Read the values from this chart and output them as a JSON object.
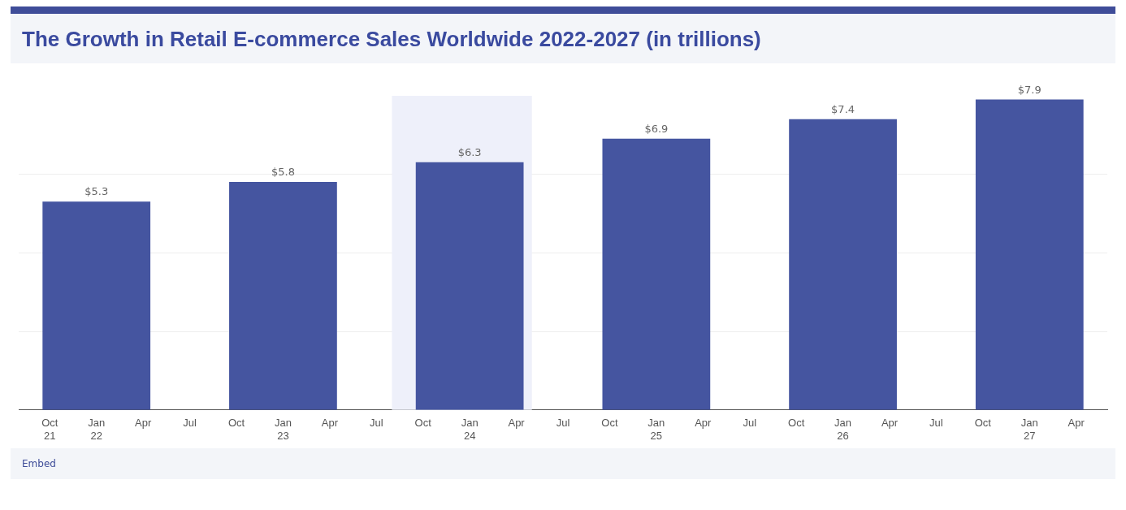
{
  "chart_data": {
    "type": "bar",
    "title": "The Growth in Retail E-commerce Sales Worldwide 2022-2027 (in trillions)",
    "x": [
      "2022-01",
      "2023-01",
      "2024-01",
      "2025-01",
      "2026-01",
      "2027-01"
    ],
    "values": [
      5.3,
      5.8,
      6.3,
      6.9,
      7.4,
      7.9
    ],
    "value_labels": [
      "$5.3",
      "$5.8",
      "$6.3",
      "$6.9",
      "$7.4",
      "$7.9"
    ],
    "color": "#4555a0",
    "xlim": [
      "2021-08",
      "2027-06"
    ],
    "xticks": [
      {
        "value": "2021-10",
        "label": "Oct 21"
      },
      {
        "value": "2022-01",
        "label": "Jan 22"
      },
      {
        "value": "2022-04",
        "label": "Apr"
      },
      {
        "value": "2022-07",
        "label": "Jul"
      },
      {
        "value": "2022-10",
        "label": "Oct"
      },
      {
        "value": "2023-01",
        "label": "Jan 23"
      },
      {
        "value": "2023-04",
        "label": "Apr"
      },
      {
        "value": "2023-07",
        "label": "Jul"
      },
      {
        "value": "2023-10",
        "label": "Oct"
      },
      {
        "value": "2024-01",
        "label": "Jan 24"
      },
      {
        "value": "2024-04",
        "label": "Apr"
      },
      {
        "value": "2024-07",
        "label": "Jul"
      },
      {
        "value": "2024-10",
        "label": "Oct"
      },
      {
        "value": "2025-01",
        "label": "Jan 25"
      },
      {
        "value": "2025-04",
        "label": "Apr"
      },
      {
        "value": "2025-07",
        "label": "Jul"
      },
      {
        "value": "2025-10",
        "label": "Oct"
      },
      {
        "value": "2026-01",
        "label": "Jan 26"
      },
      {
        "value": "2026-04",
        "label": "Apr"
      },
      {
        "value": "2026-07",
        "label": "Jul"
      },
      {
        "value": "2026-10",
        "label": "Oct"
      },
      {
        "value": "2027-01",
        "label": "Jan 27"
      },
      {
        "value": "2027-04",
        "label": "Apr"
      }
    ],
    "ylim": [
      0,
      8
    ],
    "yticks": [
      {
        "value": 0,
        "label": null
      },
      {
        "value": 2,
        "label": null
      },
      {
        "value": 4,
        "label": null
      },
      {
        "value": 6,
        "label": null
      }
    ],
    "tick_labels": "x",
    "grid": "y",
    "legend": false,
    "bands": [
      {
        "axis": "x",
        "from": "2023-08",
        "to": "2024-05",
        "color": "#eef0fa"
      }
    ],
    "annotations": [
      "Embed"
    ]
  }
}
